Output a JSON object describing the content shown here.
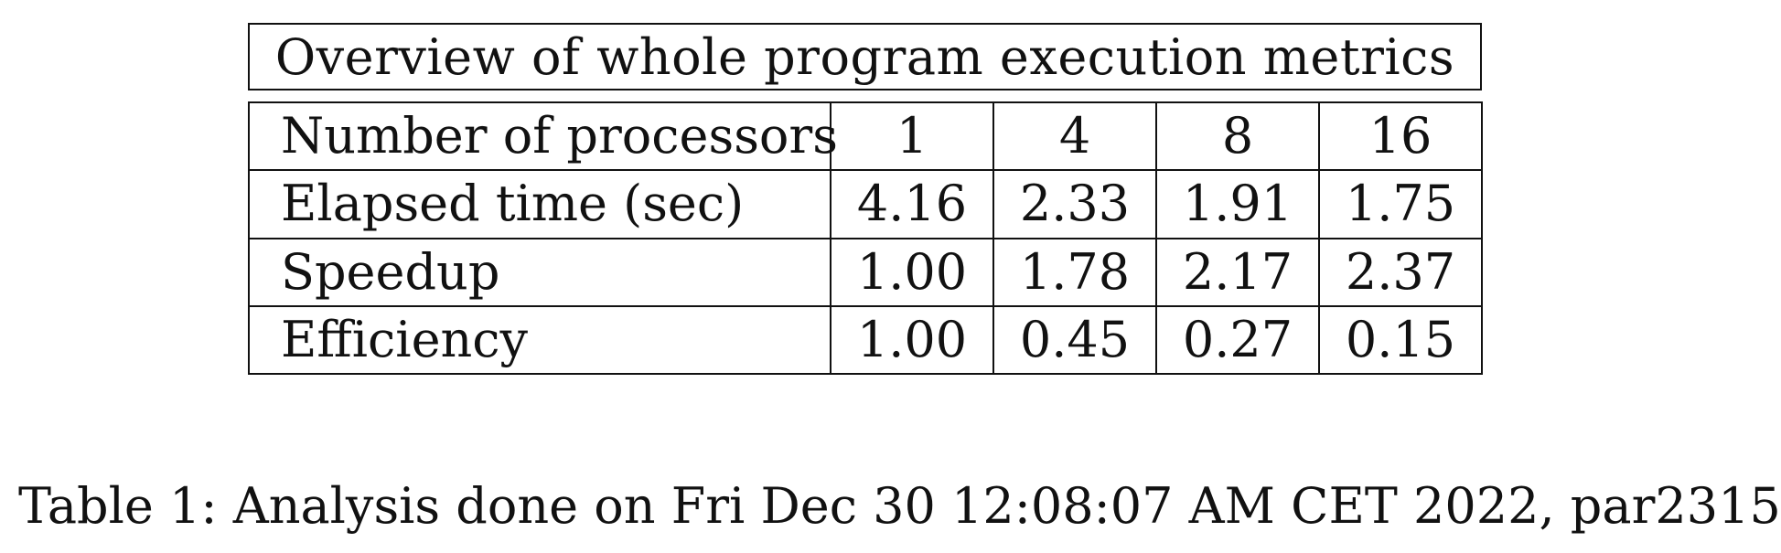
{
  "table": {
    "title": "Overview of whole program execution metrics",
    "rows": [
      {
        "label": "Number of processors",
        "values": [
          "1",
          "4",
          "8",
          "16"
        ]
      },
      {
        "label": "Elapsed time (sec)",
        "values": [
          "4.16",
          "2.33",
          "1.91",
          "1.75"
        ]
      },
      {
        "label": "Speedup",
        "values": [
          "1.00",
          "1.78",
          "2.17",
          "2.37"
        ]
      },
      {
        "label": "Efficiency",
        "values": [
          "1.00",
          "0.45",
          "0.27",
          "0.15"
        ]
      }
    ]
  },
  "caption": "Table 1: Analysis done on Fri Dec 30 12:08:07 AM CET 2022, par2315"
}
